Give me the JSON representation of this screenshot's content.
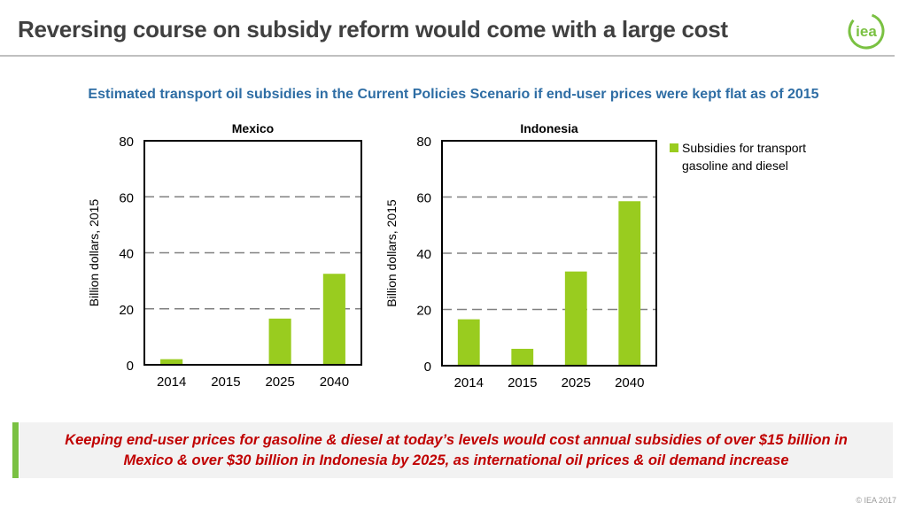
{
  "header": {
    "title": "Reversing course on subsidy reform would come with a large cost",
    "logo_text": "iea"
  },
  "subtitle": "Estimated transport oil subsidies in the Current Policies Scenario if end-user prices were kept flat as of 2015",
  "callout": {
    "line1": "Keeping end-user prices for gasoline & diesel at today’s levels would cost annual subsidies of over $15 billion in",
    "line2": "Mexico & over $30 billion in Indonesia by 2025, as international oil prices & oil demand increase"
  },
  "footer": {
    "copyright": "© IEA 2017"
  },
  "colors": {
    "bar": "#99cc1f",
    "accent": "#7ac142",
    "title": "#404040",
    "subtitle": "#2e6da4",
    "callout_text": "#c00000"
  },
  "chart_data": [
    {
      "type": "bar",
      "title": "Mexico",
      "categories": [
        "2014",
        "2015",
        "2025",
        "2040"
      ],
      "values": [
        2,
        0,
        16.5,
        32.5
      ],
      "ylabel": "Billion dollars, 2015",
      "ylim": [
        0,
        80
      ],
      "yticks": [
        "0",
        "20",
        "40",
        "60",
        "80"
      ],
      "grid": "dashed horizontal"
    },
    {
      "type": "bar",
      "title": "Indonesia",
      "categories": [
        "2014",
        "2015",
        "2025",
        "2040"
      ],
      "values": [
        16.5,
        6,
        33.5,
        58.5
      ],
      "ylabel": "Billion dollars, 2015",
      "ylim": [
        0,
        80
      ],
      "yticks": [
        "0",
        "20",
        "40",
        "60",
        "80"
      ],
      "grid": "dashed horizontal",
      "legend": {
        "line1": "Subsidies for transport",
        "line2": "gasoline and diesel",
        "placement": "right"
      }
    }
  ]
}
